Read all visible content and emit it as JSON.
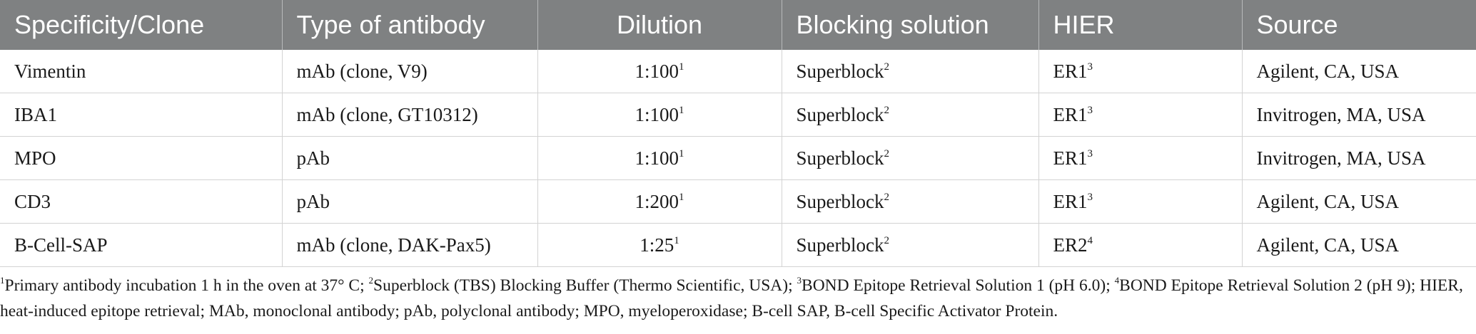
{
  "table": {
    "headers": [
      "Specificity/Clone",
      "Type of antibody",
      "Dilution",
      "Blocking solution",
      "HIER",
      "Source"
    ],
    "rows": [
      {
        "specificity": "Vimentin",
        "type": "mAb (clone, V9)",
        "dilution": "1:100",
        "dilution_note": "1",
        "blocking": "Superblock",
        "blocking_note": "2",
        "hier": "ER1",
        "hier_note": "3",
        "source": "Agilent, CA, USA"
      },
      {
        "specificity": "IBA1",
        "type": "mAb (clone, GT10312)",
        "dilution": "1:100",
        "dilution_note": "1",
        "blocking": "Superblock",
        "blocking_note": "2",
        "hier": "ER1",
        "hier_note": "3",
        "source": "Invitrogen, MA, USA"
      },
      {
        "specificity": "MPO",
        "type": "pAb",
        "dilution": "1:100",
        "dilution_note": "1",
        "blocking": "Superblock",
        "blocking_note": "2",
        "hier": "ER1",
        "hier_note": "3",
        "source": "Invitrogen, MA, USA"
      },
      {
        "specificity": "CD3",
        "type": "pAb",
        "dilution": "1:200",
        "dilution_note": "1",
        "blocking": "Superblock",
        "blocking_note": "2",
        "hier": "ER1",
        "hier_note": "3",
        "source": "Agilent, CA, USA"
      },
      {
        "specificity": "B-Cell-SAP",
        "type": "mAb (clone, DAK-Pax5)",
        "dilution": "1:25",
        "dilution_note": "1",
        "blocking": "Superblock",
        "blocking_note": "2",
        "hier": "ER2",
        "hier_note": "4",
        "source": "Agilent, CA, USA"
      }
    ]
  },
  "footnotes": {
    "n1": "1",
    "t1": "Primary antibody incubation 1 h in the oven at 37° C; ",
    "n2": "2",
    "t2": "Superblock (TBS) Blocking Buffer (Thermo Scientific, USA); ",
    "n3": "3",
    "t3": "BOND Epitope Retrieval Solution 1 (pH 6.0); ",
    "n4": "4",
    "t4": "BOND Epitope Retrieval Solution 2 (pH 9); HIER, heat-induced epitope retrieval; MAb, monoclonal antibody; pAb, polyclonal antibody; MPO, myeloperoxidase; B-cell SAP, B-cell Specific Activator Protein."
  }
}
